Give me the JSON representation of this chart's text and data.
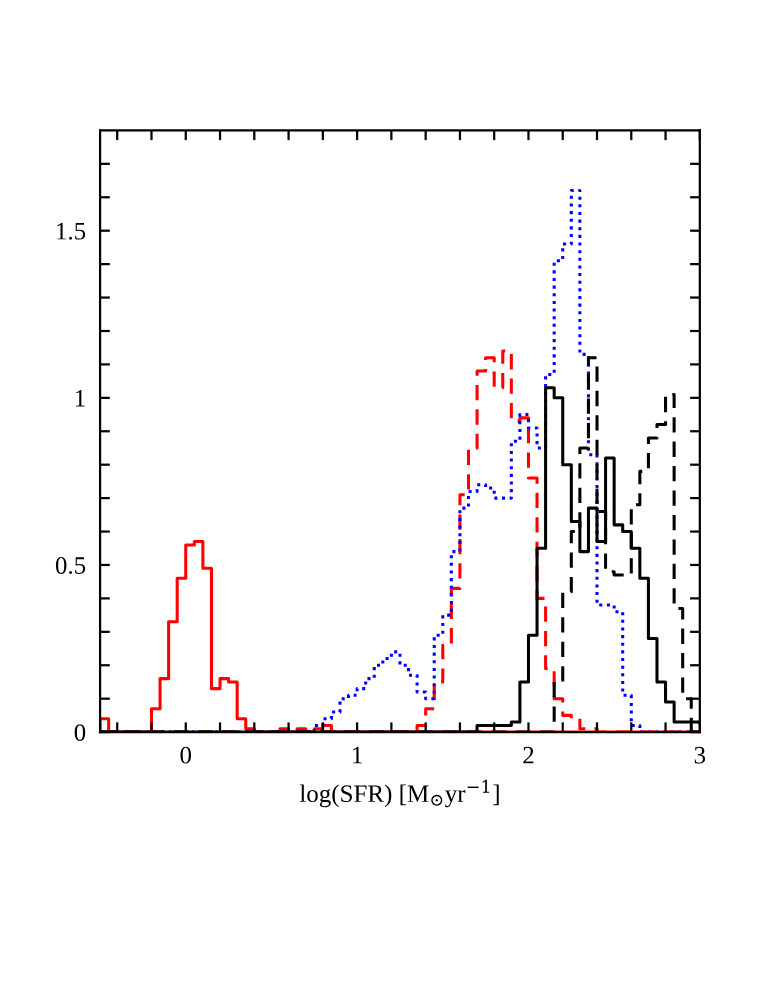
{
  "chart_data": {
    "type": "histogram",
    "xlabel": "log(SFR) [M$_{⊙}$yr$^{−1}$]",
    "xlim": [
      -0.5,
      3
    ],
    "ylim": [
      0,
      1.8
    ],
    "xticks": [
      {
        "value": -0.4,
        "label": null
      },
      {
        "value": -0.2,
        "label": null
      },
      0,
      {
        "value": 0.2,
        "label": null
      },
      {
        "value": 0.4,
        "label": null
      },
      {
        "value": 0.6,
        "label": null
      },
      {
        "value": 0.8,
        "label": null
      },
      1,
      {
        "value": 1.2,
        "label": null
      },
      {
        "value": 1.4,
        "label": null
      },
      {
        "value": 1.6,
        "label": null
      },
      {
        "value": 1.8,
        "label": null
      },
      2,
      {
        "value": 2.2,
        "label": null
      },
      {
        "value": 2.4,
        "label": null
      },
      {
        "value": 2.6,
        "label": null
      },
      {
        "value": 2.8,
        "label": null
      },
      3
    ],
    "yticks": [
      0,
      {
        "value": 0.1,
        "label": null
      },
      {
        "value": 0.2,
        "label": null
      },
      {
        "value": 0.3,
        "label": null
      },
      {
        "value": 0.4,
        "label": null
      },
      0.5,
      {
        "value": 0.6,
        "label": null
      },
      {
        "value": 0.7,
        "label": null
      },
      {
        "value": 0.8,
        "label": null
      },
      {
        "value": 0.9,
        "label": null
      },
      1,
      {
        "value": 1.1,
        "label": null
      },
      {
        "value": 1.2,
        "label": null
      },
      {
        "value": 1.3,
        "label": null
      },
      {
        "value": 1.4,
        "label": null
      },
      1.5,
      {
        "value": 1.6,
        "label": null
      },
      {
        "value": 1.7,
        "label": null
      }
    ],
    "bins": [
      -0.5,
      -0.45,
      -0.4,
      -0.35,
      -0.3,
      -0.25,
      -0.2,
      -0.15,
      -0.1,
      -0.05,
      0,
      0.05,
      0.1,
      0.15,
      0.2,
      0.25,
      0.3,
      0.35,
      0.4,
      0.45,
      0.5,
      0.55,
      0.6,
      0.65,
      0.7,
      0.75,
      0.8,
      0.85,
      0.9,
      0.95,
      1,
      1.05,
      1.1,
      1.15,
      1.2,
      1.25,
      1.3,
      1.35,
      1.4,
      1.45,
      1.5,
      1.55,
      1.6,
      1.65,
      1.7,
      1.75,
      1.8,
      1.85,
      1.9,
      1.95,
      2,
      2.05,
      2.1,
      2.15,
      2.2,
      2.25,
      2.3,
      2.35,
      2.4,
      2.45,
      2.5,
      2.55,
      2.6,
      2.65,
      2.7,
      2.75,
      2.8,
      2.85,
      2.9,
      2.95,
      3
    ],
    "series": [
      {
        "color": "#ff0000",
        "line_style": "solid",
        "values": [
          0.04,
          0,
          0,
          0,
          0,
          0,
          0.07,
          0.16,
          0.33,
          0.46,
          0.56,
          0.57,
          0.49,
          0.13,
          0.16,
          0.15,
          0.04,
          0.01,
          0,
          0,
          0,
          0.01,
          0,
          0.01,
          0,
          0.01,
          0.02,
          0,
          0,
          0,
          0,
          0,
          0,
          0,
          0,
          0,
          0,
          0,
          0,
          0,
          0,
          0,
          0,
          0,
          0,
          0,
          0,
          0,
          0,
          0,
          0,
          0,
          0,
          0,
          0,
          0,
          0,
          0,
          0,
          0,
          0,
          0,
          0,
          0,
          0,
          0,
          0,
          0,
          0,
          0
        ]
      },
      {
        "color": "#ff0000",
        "line_style": "dashed",
        "values": [
          0,
          0,
          0,
          0,
          0,
          0,
          0,
          0,
          0,
          0,
          0,
          0,
          0,
          0,
          0,
          0,
          0,
          0,
          0,
          0,
          0,
          0,
          0,
          0,
          0,
          0,
          0,
          0,
          0,
          0,
          0,
          0,
          0,
          0,
          0,
          0,
          0,
          0.02,
          0.07,
          0.15,
          0.26,
          0.43,
          0.71,
          0.85,
          1.08,
          1.12,
          1.03,
          1.14,
          0.93,
          0.94,
          0.76,
          0.4,
          0.19,
          0.1,
          0.05,
          0.04,
          0.01,
          0.01,
          0,
          0,
          0,
          0,
          0,
          0,
          0,
          0,
          0,
          0,
          0,
          0
        ]
      },
      {
        "color": "#0000ff",
        "line_style": "dotted",
        "values": [
          0,
          0,
          0,
          0,
          0,
          0,
          0,
          0,
          0,
          0,
          0,
          0,
          0,
          0,
          0,
          0,
          0,
          0,
          0,
          0,
          0,
          0,
          0,
          0,
          0,
          0.02,
          0.04,
          0.06,
          0.1,
          0.11,
          0.13,
          0.16,
          0.2,
          0.22,
          0.24,
          0.2,
          0.17,
          0.12,
          0.1,
          0.29,
          0.35,
          0.54,
          0.67,
          0.72,
          0.74,
          0.73,
          0.7,
          0.7,
          0.87,
          0.95,
          0.91,
          0.85,
          1.07,
          1.41,
          1.46,
          1.62,
          1.13,
          0.83,
          0.38,
          0.38,
          0.36,
          0.11,
          0.02,
          0,
          0,
          0,
          0,
          0,
          0,
          0
        ]
      },
      {
        "color": "#000000",
        "line_style": "solid",
        "values": [
          0,
          0,
          0,
          0,
          0,
          0,
          0,
          0,
          0,
          0,
          0,
          0,
          0,
          0,
          0,
          0,
          0,
          0,
          0,
          0,
          0,
          0,
          0,
          0,
          0,
          0,
          0,
          0,
          0,
          0,
          0,
          0,
          0,
          0,
          0,
          0,
          0,
          0,
          0,
          0,
          0,
          0,
          0,
          0,
          0.02,
          0.02,
          0.02,
          0.02,
          0.03,
          0.15,
          0.29,
          0.55,
          1.03,
          1.0,
          0.8,
          0.63,
          0.54,
          0.67,
          0.57,
          0.82,
          0.62,
          0.6,
          0.55,
          0.46,
          0.28,
          0.15,
          0.09,
          0.03,
          0.03,
          0
        ]
      },
      {
        "color": "#000000",
        "line_style": "dashed",
        "values": [
          0,
          0,
          0,
          0,
          0,
          0,
          0,
          0,
          0,
          0,
          0,
          0,
          0,
          0,
          0,
          0,
          0,
          0,
          0,
          0,
          0,
          0,
          0,
          0,
          0,
          0,
          0,
          0,
          0,
          0,
          0,
          0,
          0,
          0,
          0,
          0,
          0,
          0,
          0,
          0,
          0,
          0,
          0,
          0,
          0,
          0,
          0,
          0,
          0,
          0,
          0,
          0,
          0,
          0.15,
          0.42,
          0.6,
          0.85,
          1.12,
          0.66,
          0.48,
          0.47,
          0.47,
          0.68,
          0.78,
          0.88,
          0.92,
          1.01,
          0.37,
          0.1,
          0.03
        ]
      }
    ]
  }
}
